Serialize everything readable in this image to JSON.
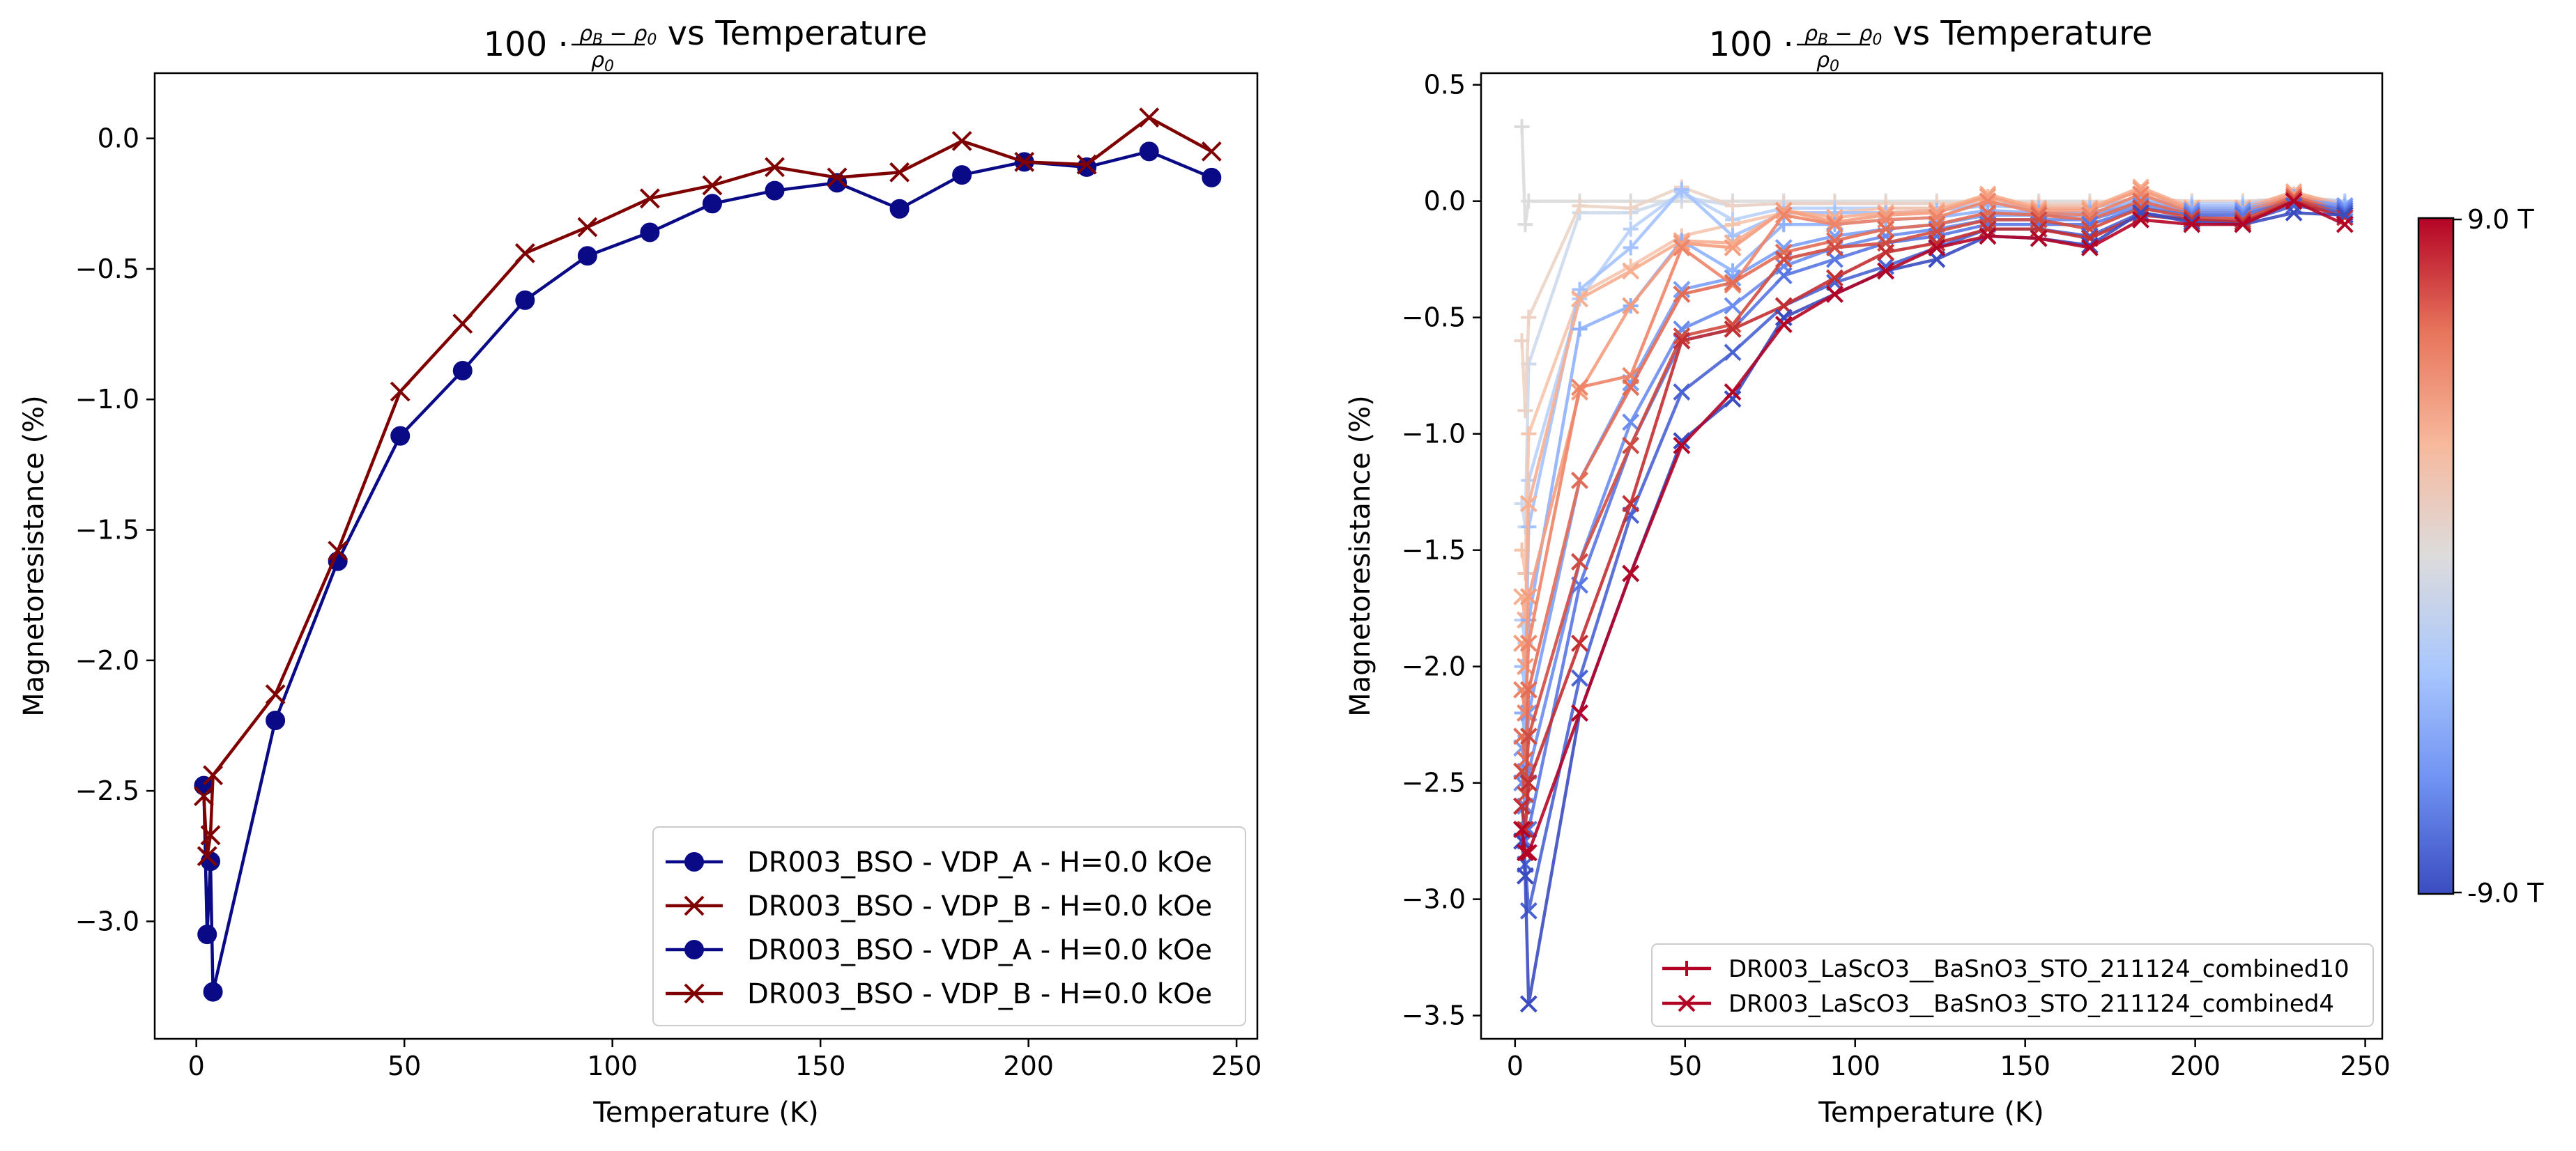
{
  "chart_data": [
    {
      "type": "line",
      "title": "100 · (ρ_B − ρ_0)/ρ_0 vs Temperature",
      "title_parts": {
        "prefix": "100",
        "numerator": "ρ",
        "numerator_sub": "B",
        "minus": "−",
        "rho0": "ρ",
        "rho0_sub": "0",
        "suffix": "vs Temperature"
      },
      "xlabel": "Temperature (K)",
      "ylabel": "Magnetoresistance (%)",
      "xlim": [
        -10,
        255
      ],
      "ylim": [
        -3.45,
        0.25
      ],
      "xticks": [
        0,
        50,
        100,
        150,
        200,
        250
      ],
      "yticks": [
        0.0,
        -0.5,
        -1.0,
        -1.5,
        -2.0,
        -2.5,
        -3.0
      ],
      "ytick_labels": [
        "0.0",
        "−0.5",
        "−1.0",
        "−1.5",
        "−2.0",
        "−2.5",
        "−3.0"
      ],
      "legend_position": "lower right",
      "legend": [
        {
          "name": "DR003_BSO - VDP_A - H=0.0 kOe",
          "color": "#0a0a87",
          "marker": "o"
        },
        {
          "name": "DR003_BSO - VDP_B - H=0.0 kOe",
          "color": "#7f0000",
          "marker": "x"
        },
        {
          "name": "DR003_BSO - VDP_A - H=0.0 kOe",
          "color": "#0a0a87",
          "marker": "o"
        },
        {
          "name": "DR003_BSO - VDP_B - H=0.0 kOe",
          "color": "#7f0000",
          "marker": "x"
        }
      ],
      "series": [
        {
          "name": "DR003_BSO - VDP_A - H=0.0 kOe",
          "color": "#0a0a87",
          "marker": "o",
          "x": [
            1.8,
            2.6,
            3.4,
            4.0,
            19,
            34,
            49,
            64,
            79,
            94,
            109,
            124,
            139,
            154,
            169,
            184,
            199,
            214,
            229,
            244
          ],
          "y": [
            -2.48,
            -3.05,
            -2.77,
            -3.27,
            -2.23,
            -1.62,
            -1.14,
            -0.89,
            -0.62,
            -0.45,
            -0.36,
            -0.25,
            -0.2,
            -0.17,
            -0.27,
            -0.14,
            -0.09,
            -0.11,
            -0.05,
            -0.15
          ]
        },
        {
          "name": "DR003_BSO - VDP_B - H=0.0 kOe",
          "color": "#7f0000",
          "marker": "x",
          "x": [
            1.8,
            2.6,
            3.4,
            4.0,
            19,
            34,
            49,
            64,
            79,
            94,
            109,
            124,
            139,
            154,
            169,
            184,
            199,
            214,
            229,
            244
          ],
          "y": [
            -2.52,
            -2.75,
            -2.67,
            -2.44,
            -2.13,
            -1.58,
            -0.97,
            -0.71,
            -0.44,
            -0.34,
            -0.23,
            -0.18,
            -0.11,
            -0.15,
            -0.13,
            -0.01,
            -0.09,
            -0.1,
            0.08,
            -0.05
          ]
        }
      ]
    },
    {
      "type": "line",
      "title": "100 · (ρ_B − ρ_0)/ρ_0 vs Temperature",
      "title_parts": {
        "prefix": "100",
        "numerator": "ρ",
        "numerator_sub": "B",
        "minus": "−",
        "rho0": "ρ",
        "rho0_sub": "0",
        "suffix": "vs Temperature"
      },
      "xlabel": "Temperature (K)",
      "ylabel": "Magnetoresistance (%)",
      "xlim": [
        -10,
        255
      ],
      "ylim": [
        -3.6,
        0.55
      ],
      "xticks": [
        0,
        50,
        100,
        150,
        200,
        250
      ],
      "yticks": [
        0.5,
        0.0,
        -0.5,
        -1.0,
        -1.5,
        -2.0,
        -2.5,
        -3.0,
        -3.5
      ],
      "ytick_labels": [
        "0.5",
        "0.0",
        "−0.5",
        "−1.0",
        "−1.5",
        "−2.0",
        "−2.5",
        "−3.0",
        "−3.5"
      ],
      "legend_position": "lower right",
      "legend": [
        {
          "name": "DR003_LaScO3__BaSnO3_STO_211124_combined10",
          "color": "#b40426",
          "marker": "+"
        },
        {
          "name": "DR003_LaScO3__BaSnO3_STO_211124_combined4",
          "color": "#b40426",
          "marker": "x"
        }
      ],
      "colorbar": {
        "label_max": "9.0 T",
        "label_min": "-9.0 T",
        "colormap": "coolwarm",
        "stops": [
          "#3b4cc0",
          "#6f92f3",
          "#aac7fd",
          "#dddcdc",
          "#f7b89c",
          "#e7745b",
          "#b40426"
        ]
      },
      "x": [
        2,
        3,
        4,
        19,
        34,
        49,
        64,
        79,
        94,
        109,
        124,
        139,
        154,
        169,
        184,
        199,
        214,
        229,
        244
      ],
      "series": [
        {
          "field": -9,
          "color": "#3b4cc0",
          "marker": "x",
          "y": [
            -2.75,
            -2.9,
            -3.45,
            -2.2,
            -1.6,
            -1.03,
            -0.85,
            -0.5,
            -0.4,
            -0.3,
            -0.25,
            -0.15,
            -0.16,
            -0.19,
            -0.05,
            -0.09,
            -0.1,
            -0.05,
            -0.06
          ]
        },
        {
          "field": -8,
          "color": "#4a63d3",
          "marker": "x",
          "y": [
            -2.7,
            -2.85,
            -3.05,
            -2.05,
            -1.35,
            -0.82,
            -0.65,
            -0.45,
            -0.35,
            -0.28,
            -0.2,
            -0.12,
            -0.12,
            -0.15,
            -0.05,
            -0.08,
            -0.09,
            -0.02,
            -0.05
          ]
        },
        {
          "field": -7,
          "color": "#5977e3",
          "marker": "x",
          "y": [
            -2.6,
            -2.75,
            -2.7,
            -1.65,
            -1.05,
            -0.6,
            -0.55,
            -0.32,
            -0.25,
            -0.18,
            -0.15,
            -0.1,
            -0.1,
            -0.1,
            -0.03,
            -0.06,
            -0.06,
            0.0,
            -0.04
          ]
        },
        {
          "field": -6,
          "color": "#6b8df0",
          "marker": "x",
          "y": [
            -2.5,
            -2.6,
            -2.45,
            -1.55,
            -0.95,
            -0.55,
            -0.45,
            -0.28,
            -0.2,
            -0.15,
            -0.12,
            -0.08,
            -0.08,
            -0.08,
            -0.02,
            -0.05,
            -0.05,
            0.0,
            -0.03
          ]
        },
        {
          "field": -5,
          "color": "#7b9ff9",
          "marker": "x",
          "y": [
            -2.35,
            -2.45,
            -2.2,
            -1.2,
            -0.78,
            -0.38,
            -0.33,
            -0.2,
            -0.15,
            -0.12,
            -0.1,
            -0.06,
            -0.06,
            -0.06,
            -0.01,
            -0.04,
            -0.04,
            0.01,
            -0.02
          ]
        },
        {
          "field": -4,
          "color": "#8fb1fe",
          "marker": "+",
          "y": [
            -2.2,
            -2.3,
            -1.8,
            -0.55,
            -0.45,
            -0.17,
            -0.3,
            -0.1,
            -0.1,
            -0.08,
            -0.07,
            -0.04,
            -0.05,
            -0.05,
            0.0,
            -0.03,
            -0.03,
            0.02,
            -0.02
          ]
        },
        {
          "field": -3,
          "color": "#a3c2fe",
          "marker": "+",
          "y": [
            -2.0,
            -2.1,
            -1.4,
            -0.38,
            -0.2,
            0.05,
            -0.15,
            -0.05,
            -0.05,
            -0.05,
            -0.04,
            -0.02,
            -0.03,
            -0.03,
            0.01,
            -0.02,
            -0.02,
            0.02,
            -0.01
          ]
        },
        {
          "field": -2,
          "color": "#b9d0f9",
          "marker": "+",
          "y": [
            -1.8,
            -1.9,
            -1.2,
            -0.42,
            -0.12,
            0.04,
            -0.08,
            -0.03,
            -0.03,
            -0.03,
            -0.03,
            -0.01,
            -0.02,
            -0.02,
            0.01,
            -0.01,
            -0.01,
            0.02,
            0.0
          ]
        },
        {
          "field": -1,
          "color": "#cdd9ec",
          "marker": "+",
          "y": [
            -1.3,
            -1.4,
            -0.7,
            -0.05,
            -0.05,
            0.02,
            -0.02,
            -0.01,
            -0.01,
            -0.01,
            -0.01,
            0.0,
            -0.01,
            -0.01,
            0.01,
            0.0,
            0.0,
            0.01,
            0.0
          ]
        },
        {
          "field": 0,
          "color": "#dddcdc",
          "marker": "+",
          "y": [
            0.32,
            -0.1,
            0.0,
            0.0,
            0.0,
            0.0,
            0.0,
            0.0,
            0.0,
            0.0,
            0.0,
            0.0,
            0.0,
            0.0,
            0.0,
            0.0,
            0.0,
            0.0,
            0.0
          ]
        },
        {
          "field": 1,
          "color": "#ecd3c5",
          "marker": "+",
          "y": [
            -0.6,
            -0.9,
            -0.5,
            -0.02,
            -0.03,
            0.06,
            -0.02,
            -0.01,
            -0.01,
            -0.01,
            -0.01,
            0.0,
            -0.01,
            -0.01,
            0.01,
            0.0,
            0.0,
            0.01,
            0.0
          ]
        },
        {
          "field": 2,
          "color": "#f5c4ac",
          "marker": "+",
          "y": [
            -1.5,
            -1.6,
            -1.0,
            -0.4,
            -0.28,
            -0.15,
            -0.1,
            -0.05,
            -0.05,
            -0.03,
            -0.03,
            0.02,
            -0.02,
            -0.02,
            0.04,
            -0.02,
            -0.02,
            0.03,
            -0.01
          ]
        },
        {
          "field": 3,
          "color": "#f7af91",
          "marker": "x",
          "y": [
            -1.7,
            -1.8,
            -1.3,
            -0.42,
            -0.3,
            -0.17,
            -0.18,
            -0.04,
            -0.07,
            -0.05,
            -0.04,
            0.03,
            -0.03,
            -0.03,
            0.06,
            -0.03,
            -0.03,
            0.04,
            -0.02
          ]
        },
        {
          "field": 4,
          "color": "#f59c7d",
          "marker": "x",
          "y": [
            -1.9,
            -2.0,
            -1.7,
            -0.82,
            -0.45,
            -0.18,
            -0.2,
            -0.04,
            -0.09,
            -0.06,
            -0.05,
            0.02,
            -0.04,
            -0.04,
            0.05,
            -0.04,
            -0.04,
            0.03,
            -0.03
          ]
        },
        {
          "field": 5,
          "color": "#ee8468",
          "marker": "x",
          "y": [
            -2.1,
            -2.2,
            -1.9,
            -0.8,
            -0.75,
            -0.2,
            -0.36,
            -0.06,
            -0.1,
            -0.08,
            -0.07,
            0.0,
            -0.05,
            -0.06,
            0.03,
            -0.05,
            -0.05,
            0.02,
            -0.04
          ]
        },
        {
          "field": 6,
          "color": "#e36c55",
          "marker": "x",
          "y": [
            -2.3,
            -2.4,
            -2.1,
            -1.2,
            -0.8,
            -0.4,
            -0.35,
            -0.22,
            -0.17,
            -0.12,
            -0.1,
            -0.05,
            -0.06,
            -0.08,
            0.0,
            -0.06,
            -0.07,
            0.02,
            -0.05
          ]
        },
        {
          "field": 7,
          "color": "#d24b40",
          "marker": "x",
          "y": [
            -2.45,
            -2.55,
            -2.3,
            -1.55,
            -1.05,
            -0.58,
            -0.53,
            -0.25,
            -0.2,
            -0.18,
            -0.13,
            -0.08,
            -0.08,
            -0.12,
            -0.03,
            -0.07,
            -0.08,
            0.01,
            -0.06
          ]
        },
        {
          "field": 8,
          "color": "#c32e31",
          "marker": "x",
          "y": [
            -2.6,
            -2.7,
            -2.5,
            -1.9,
            -1.3,
            -0.6,
            -0.55,
            -0.45,
            -0.33,
            -0.22,
            -0.18,
            -0.12,
            -0.12,
            -0.16,
            -0.06,
            -0.08,
            -0.09,
            0.0,
            -0.07
          ]
        },
        {
          "field": 9,
          "color": "#b40426",
          "marker": "x",
          "y": [
            -2.7,
            -2.8,
            -2.8,
            -2.2,
            -1.6,
            -1.05,
            -0.82,
            -0.53,
            -0.4,
            -0.3,
            -0.2,
            -0.15,
            -0.16,
            -0.2,
            -0.08,
            -0.1,
            -0.1,
            0.0,
            -0.1
          ]
        }
      ]
    }
  ]
}
